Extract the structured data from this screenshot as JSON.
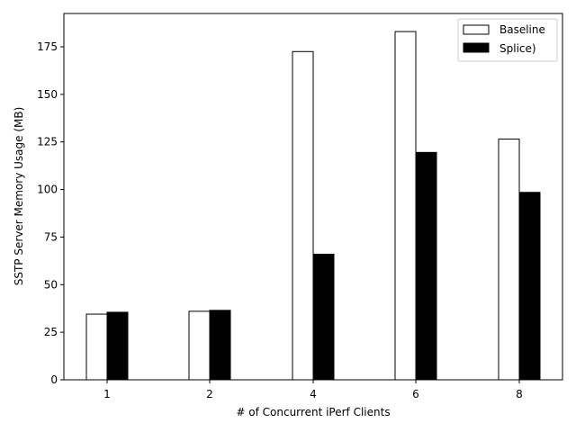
{
  "chart_data": {
    "type": "bar",
    "title": "",
    "xlabel": "# of Concurrent iPerf Clients",
    "ylabel": "SSTP Server Memory Usage (MB)",
    "categories": [
      "1",
      "2",
      "4",
      "6",
      "8"
    ],
    "series": [
      {
        "name": "Baseline",
        "values": [
          34.5,
          36.0,
          172.5,
          183.0,
          126.5
        ],
        "fill": "#ffffff",
        "stroke": "#000000"
      },
      {
        "name": "Splice)",
        "values": [
          35.5,
          36.5,
          66.0,
          119.5,
          98.5
        ],
        "fill": "#000000",
        "stroke": "#000000"
      }
    ],
    "ylim": [
      0,
      192.5
    ],
    "yticks": [
      0,
      25,
      50,
      75,
      100,
      125,
      150,
      175
    ],
    "grid": false,
    "legend_position": "top-right"
  }
}
